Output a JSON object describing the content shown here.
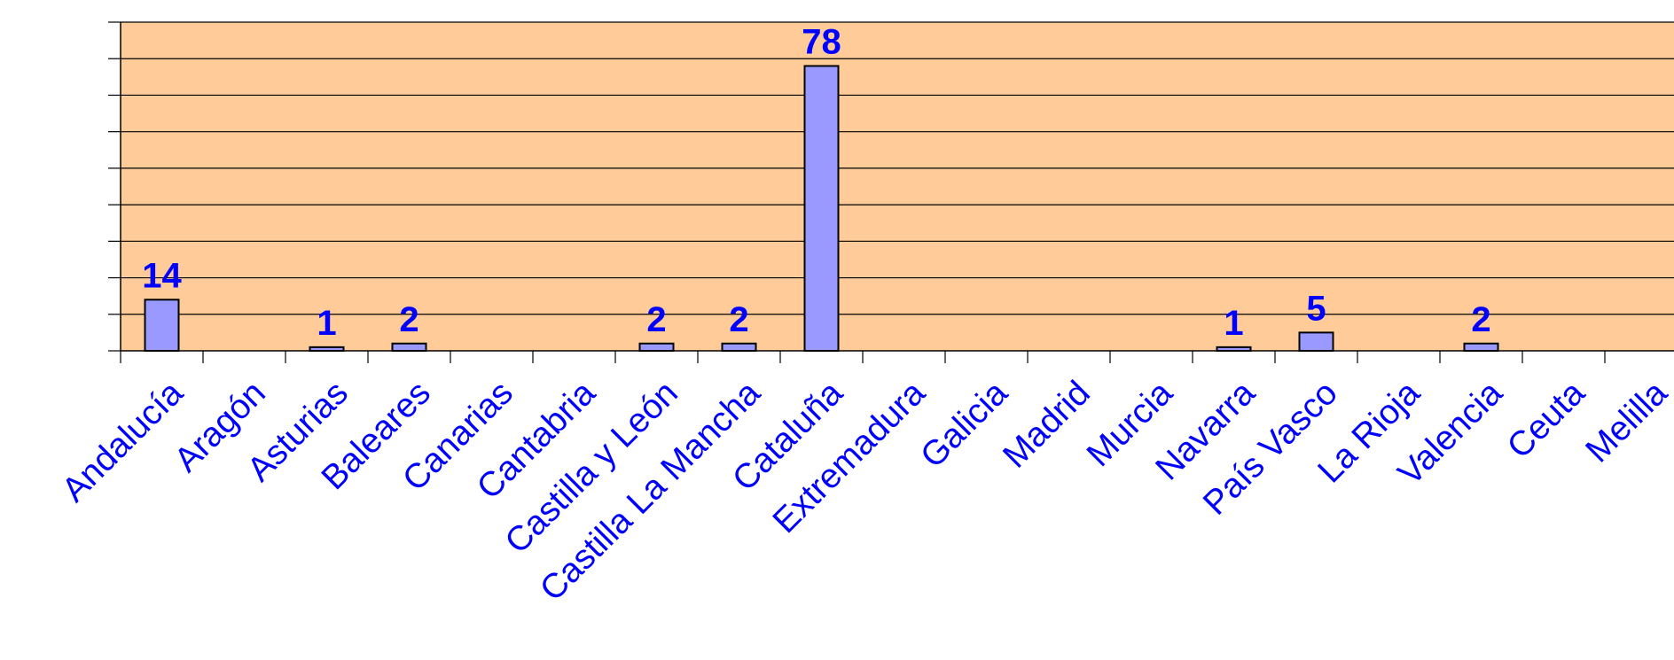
{
  "chart_data": {
    "type": "bar",
    "categories": [
      "Andalucía",
      "Aragón",
      "Asturias",
      "Baleares",
      "Canarias",
      "Cantabria",
      "Castilla y León",
      "Castilla La Mancha",
      "Cataluña",
      "Extremadura",
      "Galicia",
      "Madrid",
      "Murcia",
      "Navarra",
      "País Vasco",
      "La Rioja",
      "Valencia",
      "Ceuta",
      "Melilla"
    ],
    "values": [
      14,
      0,
      1,
      2,
      0,
      0,
      2,
      2,
      78,
      0,
      0,
      0,
      0,
      1,
      5,
      0,
      2,
      0,
      0
    ],
    "data_labels": [
      "14",
      "",
      "1",
      "2",
      "",
      "",
      "2",
      "2",
      "78",
      "",
      "",
      "",
      "",
      "1",
      "5",
      "",
      "2",
      "",
      ""
    ],
    "ylim": [
      0,
      90
    ],
    "grid": true,
    "colors": {
      "plot_background": "#ffcc99",
      "bar_fill": "#9999ff",
      "bar_stroke": "#000000",
      "label_text": "#0000ff"
    }
  }
}
